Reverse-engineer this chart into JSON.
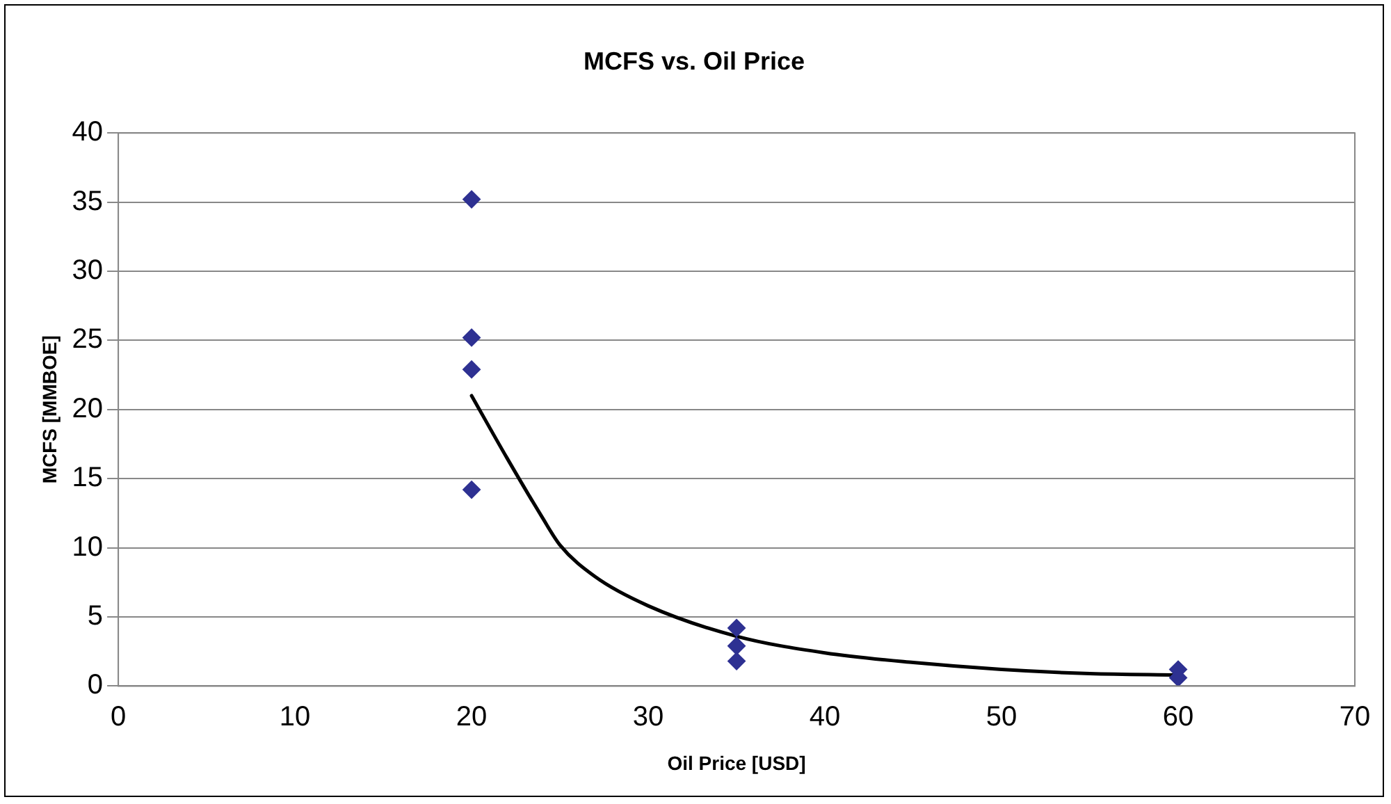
{
  "chart_data": {
    "type": "scatter",
    "title": "MCFS vs. Oil Price",
    "xlabel": "Oil Price [USD]",
    "ylabel": "MCFS [MMBOE]",
    "xlim": [
      0,
      70
    ],
    "xticks": [
      0,
      10,
      20,
      30,
      40,
      50,
      60,
      70
    ],
    "ylim": [
      0,
      40
    ],
    "yticks": [
      0,
      5,
      10,
      15,
      20,
      25,
      30,
      35,
      40
    ],
    "grid": "y",
    "legend": false,
    "marker": "diamond",
    "series": [
      {
        "color": "#2e3192",
        "x": [
          20,
          20,
          20,
          20,
          35,
          35,
          35,
          60,
          60
        ],
        "values": [
          35.2,
          25.2,
          22.9,
          14.2,
          4.2,
          2.9,
          1.8,
          1.2,
          0.6
        ]
      },
      {
        "type": "line",
        "color": "#000000",
        "marker": "none",
        "x": [
          20,
          22,
          24,
          25,
          27,
          30,
          35,
          40,
          45,
          50,
          55,
          60
        ],
        "values": [
          21,
          16.5,
          12.2,
          10.2,
          7.9,
          5.8,
          3.6,
          2.4,
          1.7,
          1.2,
          0.9,
          0.8
        ]
      }
    ]
  }
}
